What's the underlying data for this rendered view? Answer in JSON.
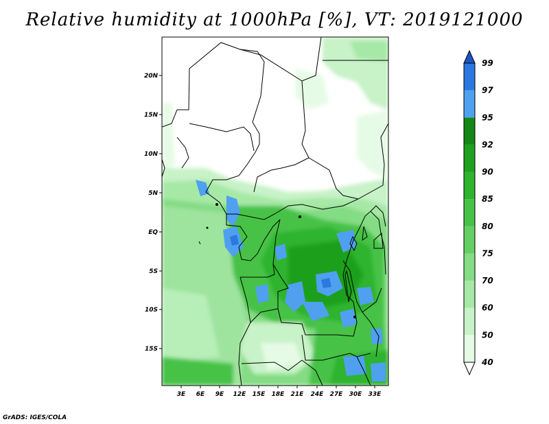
{
  "title": "Relative humidity at 1000hPa [%], VT: 2019121000",
  "credit": "GrADS: IGES/COLA",
  "lat_ticks": [
    "20N",
    "15N",
    "10N",
    "5N",
    "EQ",
    "5S",
    "10S",
    "15S"
  ],
  "lon_ticks": [
    "3E",
    "6E",
    "9E",
    "12E",
    "15E",
    "18E",
    "21E",
    "24E",
    "27E",
    "30E",
    "33E"
  ],
  "colorbar": {
    "levels": [
      "40",
      "50",
      "60",
      "70",
      "75",
      "80",
      "85",
      "90",
      "92",
      "95",
      "97",
      "99"
    ],
    "colors": [
      "#ffffff",
      "#e6fbe6",
      "#c8f2c8",
      "#a6e8a6",
      "#84dc84",
      "#64d064",
      "#46c246",
      "#2eb42e",
      "#1fa01f",
      "#148714",
      "#50a0f0",
      "#2a78e0",
      "#1a55c8"
    ]
  },
  "legend": {
    "dry": "#ffffff",
    "moist": "#a6e8a6",
    "wet": "#46c246",
    "saturated": "#50a0f0"
  }
}
